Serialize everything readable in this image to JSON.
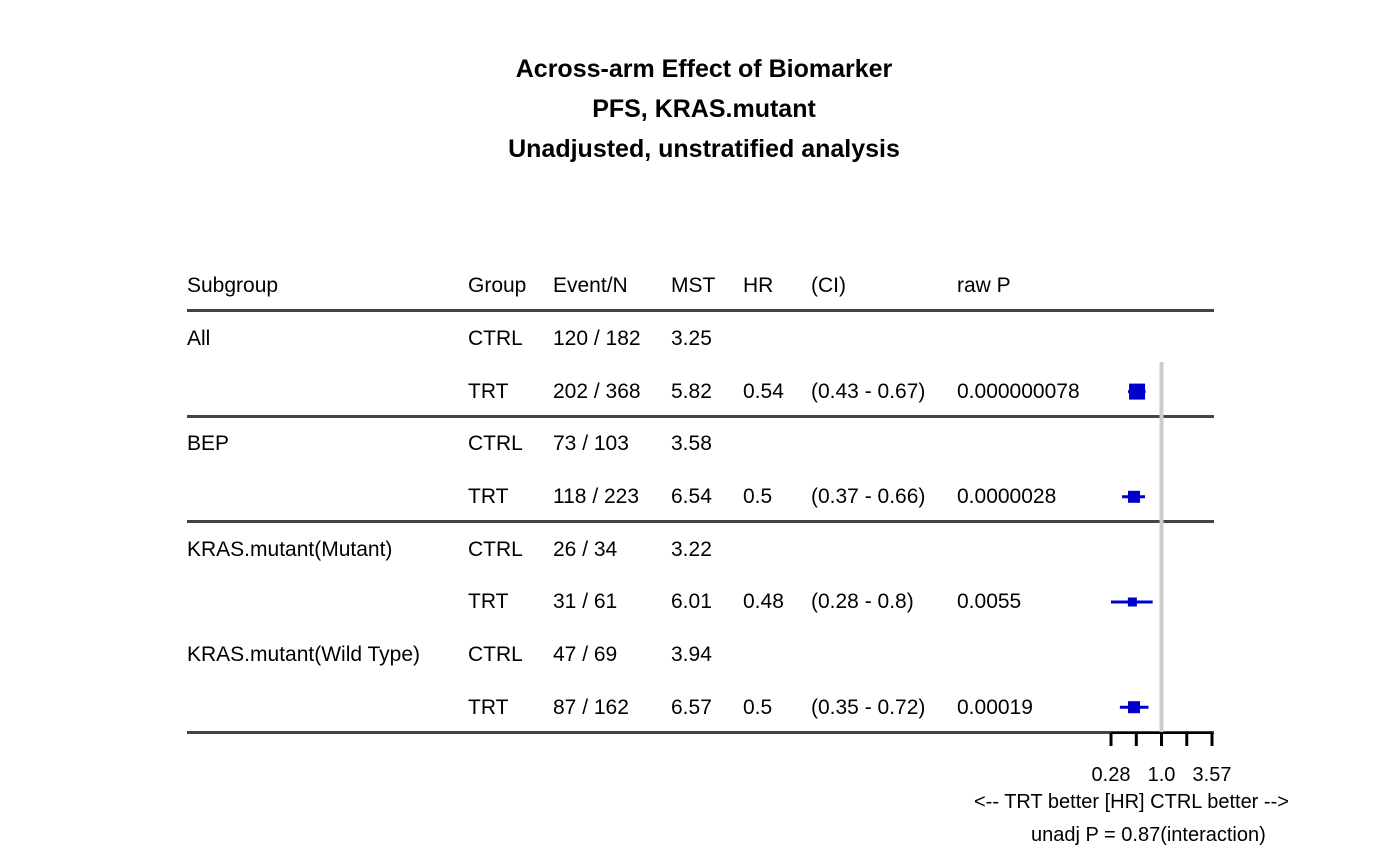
{
  "title_lines": [
    "Across-arm Effect of Biomarker",
    "PFS, KRAS.mutant",
    "Unadjusted, unstratified analysis"
  ],
  "headers": [
    "Subgroup",
    "Group",
    "Event/N",
    "MST",
    "HR",
    "(CI)",
    "raw P"
  ],
  "rows": [
    {
      "subgroup": "All",
      "group": "CTRL",
      "event_n": "120 / 182",
      "mst": "3.25",
      "hr": "",
      "ci": "",
      "p": ""
    },
    {
      "subgroup": "",
      "group": "TRT",
      "event_n": "202 / 368",
      "mst": "5.82",
      "hr": "0.54",
      "ci": "(0.43 - 0.67)",
      "p": "0.000000078"
    },
    {
      "subgroup": "BEP",
      "group": "CTRL",
      "event_n": "73 / 103",
      "mst": "3.58",
      "hr": "",
      "ci": "",
      "p": ""
    },
    {
      "subgroup": "",
      "group": "TRT",
      "event_n": "118 / 223",
      "mst": "6.54",
      "hr": "0.5",
      "ci": "(0.37 - 0.66)",
      "p": "0.0000028"
    },
    {
      "subgroup": "KRAS.mutant(Mutant)",
      "group": "CTRL",
      "event_n": "26 / 34",
      "mst": "3.22",
      "hr": "",
      "ci": "",
      "p": ""
    },
    {
      "subgroup": "",
      "group": "TRT",
      "event_n": "31 / 61",
      "mst": "6.01",
      "hr": "0.48",
      "ci": "(0.28 - 0.8)",
      "p": "0.0055"
    },
    {
      "subgroup": "KRAS.mutant(Wild Type)",
      "group": "CTRL",
      "event_n": "47 / 69",
      "mst": "3.94",
      "hr": "",
      "ci": "",
      "p": ""
    },
    {
      "subgroup": "",
      "group": "TRT",
      "event_n": "87 / 162",
      "mst": "6.57",
      "hr": "0.5",
      "ci": "(0.35 - 0.72)",
      "p": "0.00019"
    }
  ],
  "chart_data": {
    "type": "forest",
    "x_scale": "log",
    "reference_value": 1.0,
    "xlim": [
      0.28,
      3.57
    ],
    "x_ticks": [
      0.28,
      0.53,
      1.0,
      1.89,
      3.57
    ],
    "x_tick_labels": [
      {
        "value": 0.28,
        "label": "0.28"
      },
      {
        "value": 1.0,
        "label": "1.0"
      },
      {
        "value": 3.57,
        "label": "3.57"
      }
    ],
    "estimates": [
      {
        "row": 1,
        "hr": 0.54,
        "lo": 0.43,
        "hi": 0.67
      },
      {
        "row": 3,
        "hr": 0.5,
        "lo": 0.37,
        "hi": 0.66
      },
      {
        "row": 5,
        "hr": 0.48,
        "lo": 0.28,
        "hi": 0.8
      },
      {
        "row": 7,
        "hr": 0.5,
        "lo": 0.35,
        "hi": 0.72
      }
    ],
    "axis_caption": "<--  TRT better [HR]  CTRL better -->",
    "interaction_note": "unadj P = 0.87(interaction)",
    "colors": {
      "marker": "#0000cc",
      "reference_line": "#cccccc",
      "axis": "#000000",
      "rules": "#444444"
    }
  }
}
